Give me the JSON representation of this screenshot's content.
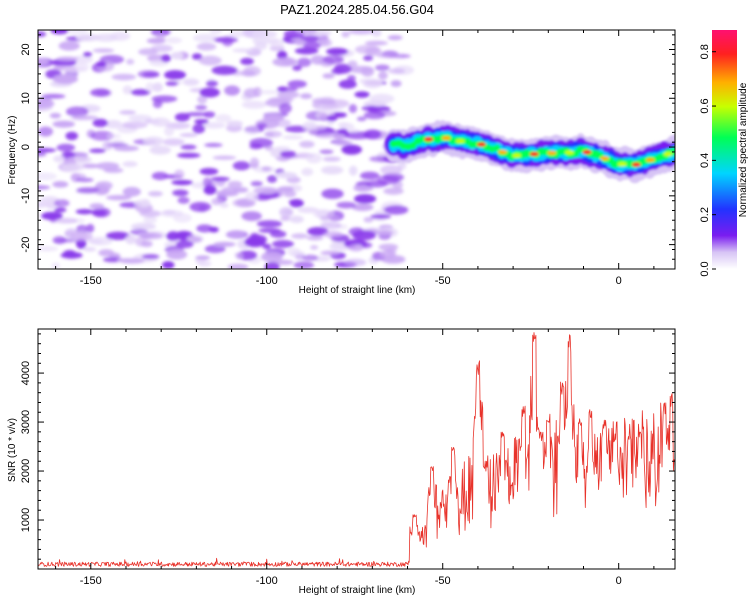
{
  "title": "PAZ1.2024.285.04.56.G04",
  "chart_data": [
    {
      "type": "heatmap",
      "title": "PAZ1.2024.285.04.56.G04",
      "xlabel": "Height of straight line (km)",
      "ylabel": "Frequency (Hz)",
      "xlim": [
        -165,
        16
      ],
      "ylim": [
        -25,
        24
      ],
      "x_ticks": [
        -150,
        -100,
        -50,
        0
      ],
      "y_ticks": [
        -20,
        -10,
        0,
        10,
        20
      ],
      "noise_region_x": [
        -165,
        -61
      ],
      "signal_trace": {
        "x": [
          -65,
          -60,
          -55,
          -50,
          -45,
          -40,
          -35,
          -30,
          -25,
          -20,
          -15,
          -10,
          -5,
          0,
          5,
          10,
          15
        ],
        "freq": [
          0.5,
          0.3,
          1.5,
          2.0,
          1.2,
          0.8,
          -0.5,
          -1.8,
          -1.5,
          -1.2,
          -1.2,
          -0.8,
          -2.0,
          -3.5,
          -3.6,
          -2.4,
          -1.2
        ]
      },
      "colorbar": {
        "label": "Normalized spectral amplitude",
        "range": [
          0,
          0.88
        ],
        "ticks": [
          "0.0",
          "0.2",
          "0.4",
          "0.6",
          "0.8"
        ],
        "colors": [
          "#ffffff",
          "#d7c4f5",
          "#7a1df0",
          "#2233ff",
          "#00d5ff",
          "#00ff55",
          "#c8ff00",
          "#ffb000",
          "#ff2020",
          "#ff1070"
        ]
      },
      "colors": {
        "noise": "#8a3bea",
        "noise_light": "#c9a7f4"
      }
    },
    {
      "type": "line",
      "xlabel": "Height of straight line (km)",
      "ylabel": "SNR (10 * v/v)",
      "xlim": [
        -165,
        16
      ],
      "ylim": [
        0,
        4900
      ],
      "x_ticks": [
        -150,
        -100,
        -50,
        0
      ],
      "y_ticks": [
        1000,
        2000,
        3000,
        4000
      ],
      "color": "#e8322a",
      "noise_floor": 80,
      "envelope": {
        "x": [
          -60,
          -57,
          -55,
          -52,
          -50,
          -45,
          -42,
          -40,
          -35,
          -30,
          -25,
          -24,
          -20,
          -15,
          -10,
          -5,
          0,
          5,
          10,
          15
        ],
        "y": [
          100,
          400,
          800,
          1300,
          1200,
          1500,
          1700,
          1600,
          1700,
          1900,
          2300,
          2300,
          2100,
          2400,
          2000,
          2100,
          2200,
          2300,
          2400,
          2500
        ]
      },
      "peaks": {
        "x": [
          -58,
          -53,
          -50,
          -47,
          -40,
          -38,
          -33,
          -28,
          -27,
          -24,
          -22,
          -20,
          -16,
          -14,
          -11,
          -8,
          -4,
          -1,
          3,
          6,
          13,
          15
        ],
        "y": [
          1150,
          2150,
          1300,
          2500,
          4300,
          2150,
          2850,
          2600,
          3350,
          4950,
          2800,
          3250,
          3850,
          4800,
          3100,
          3300,
          3050,
          2800,
          2750,
          2850,
          3400,
          3600
        ]
      }
    }
  ]
}
